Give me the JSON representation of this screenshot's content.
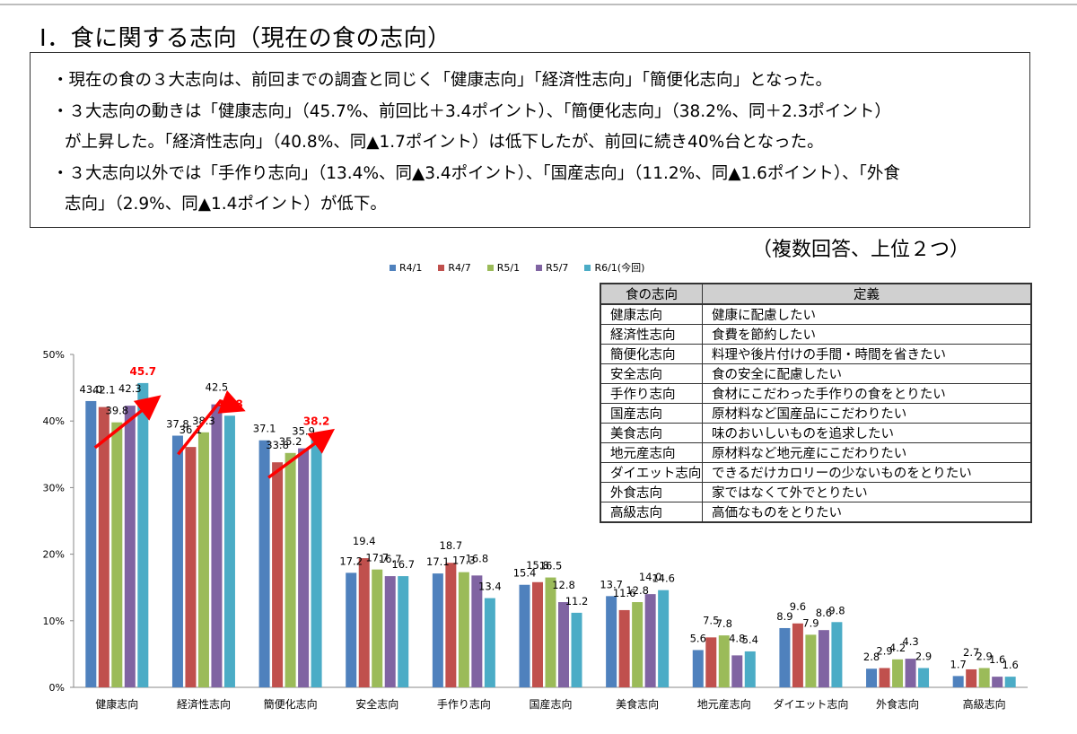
{
  "heading": "Ⅰ．食に関する志向（現在の食の志向）",
  "summary": [
    "・現在の食の３大志向は、前回までの調査と同じく「健康志向」「経済性志向」「簡便化志向」となった。",
    "・３大志向の動きは「健康志向」（45.7%、前回比＋3.4ポイント）、「簡便化志向」（38.2%、同＋2.3ポイント）",
    "が上昇した。「経済性志向」（40.8%、同▲1.7ポイント）は低下したが、前回に続き40%台となった。",
    "・３大志向以外では「手作り志向」（13.4%、同▲3.4ポイント）、「国産志向」（11.2%、同▲1.6ポイント）、「外食",
    "志向」（2.9%、同▲1.4ポイント）が低下。"
  ],
  "note": "（複数回答、上位２つ）",
  "definitions": {
    "header": [
      "食の志向",
      "定義"
    ],
    "rows": [
      [
        "健康志向",
        "健康に配慮したい"
      ],
      [
        "経済性志向",
        "食費を節約したい"
      ],
      [
        "簡便化志向",
        "料理や後片付けの手間・時間を省きたい"
      ],
      [
        "安全志向",
        "食の安全に配慮したい"
      ],
      [
        "手作り志向",
        "食材にこだわった手作りの食をとりたい"
      ],
      [
        "国産志向",
        "原材料など国産品にこだわりたい"
      ],
      [
        "美食志向",
        "味のおいしいものを追求したい"
      ],
      [
        "地元産志向",
        "原材料など地元産にこだわりたい"
      ],
      [
        "ダイエット志向",
        "できるだけカロリーの少ないものをとりたい"
      ],
      [
        "外食志向",
        "家ではなくて外でとりたい"
      ],
      [
        "高級志向",
        "高価なものをとりたい"
      ]
    ]
  },
  "chart_data": {
    "type": "bar",
    "categories": [
      "健康志向",
      "経済性志向",
      "簡便化志向",
      "安全志向",
      "手作り志向",
      "国産志向",
      "美食志向",
      "地元産志向",
      "ダイエット志向",
      "外食志向",
      "高級志向"
    ],
    "series": [
      {
        "name": "R4/1",
        "color": "#4f81bd",
        "values": [
          43.0,
          37.8,
          37.1,
          17.2,
          17.1,
          15.4,
          13.7,
          5.6,
          8.9,
          2.8,
          1.7
        ]
      },
      {
        "name": "R4/7",
        "color": "#c0504d",
        "values": [
          42.1,
          36.1,
          33.8,
          19.4,
          18.7,
          15.8,
          11.6,
          7.5,
          9.6,
          2.9,
          2.7
        ]
      },
      {
        "name": "R5/1",
        "color": "#9bbb59",
        "values": [
          39.8,
          38.3,
          35.2,
          17.7,
          17.3,
          16.5,
          12.8,
          7.8,
          7.9,
          4.2,
          2.9
        ]
      },
      {
        "name": "R5/7",
        "color": "#8064a2",
        "values": [
          42.3,
          42.5,
          35.9,
          16.7,
          16.8,
          12.8,
          14.0,
          4.8,
          8.6,
          4.3,
          1.6
        ]
      },
      {
        "name": "R6/1(今回)",
        "color": "#4bacc6",
        "values": [
          45.7,
          40.8,
          38.2,
          16.7,
          13.4,
          11.2,
          14.6,
          5.4,
          9.8,
          2.9,
          1.6
        ]
      }
    ],
    "value_labels": [
      [
        "43.0",
        "42.1",
        "39.8",
        "42.3",
        "45.7"
      ],
      [
        "37.8",
        "36.1",
        "38.3",
        "42.5",
        "40.8"
      ],
      [
        "37.1",
        "33.8",
        "35.2",
        "35.9",
        "38.2"
      ],
      [
        "17.2",
        "19.4",
        "17.7",
        "16.7",
        "16.7"
      ],
      [
        "17.1",
        "18.7",
        "17.3",
        "16.8",
        "13.4"
      ],
      [
        "15.4",
        "15.8",
        "16.5",
        "12.8",
        "11.2"
      ],
      [
        "13.7",
        "11.6",
        "12.8",
        "14.0",
        "14.6"
      ],
      [
        "5.6",
        "7.5",
        "7.8",
        "4.8",
        "5.4"
      ],
      [
        "8.9",
        "9.6",
        "7.9",
        "8.6",
        "9.8"
      ],
      [
        "2.8",
        "2.9",
        "4.2",
        "4.3",
        "2.9"
      ],
      [
        "1.7",
        "2.7",
        "2.9",
        "1.6",
        "1.6"
      ]
    ],
    "y_ticks": [
      "0%",
      "10%",
      "20%",
      "30%",
      "40%",
      "50%"
    ],
    "ylim": [
      0,
      50
    ],
    "grid": false,
    "legend": "top",
    "highlight_series": "R6/1(今回)",
    "highlight_color": "#ff0000",
    "highlight_categories": [
      0,
      1,
      2
    ],
    "trend_arrows": [
      {
        "category": 0,
        "from": 36,
        "to": 43,
        "direction": "up"
      },
      {
        "category": 1,
        "from": 35,
        "to": 42,
        "peak": 43,
        "direction": "up-down"
      },
      {
        "category": 2,
        "from": 31.5,
        "to": 38,
        "direction": "up"
      }
    ]
  }
}
